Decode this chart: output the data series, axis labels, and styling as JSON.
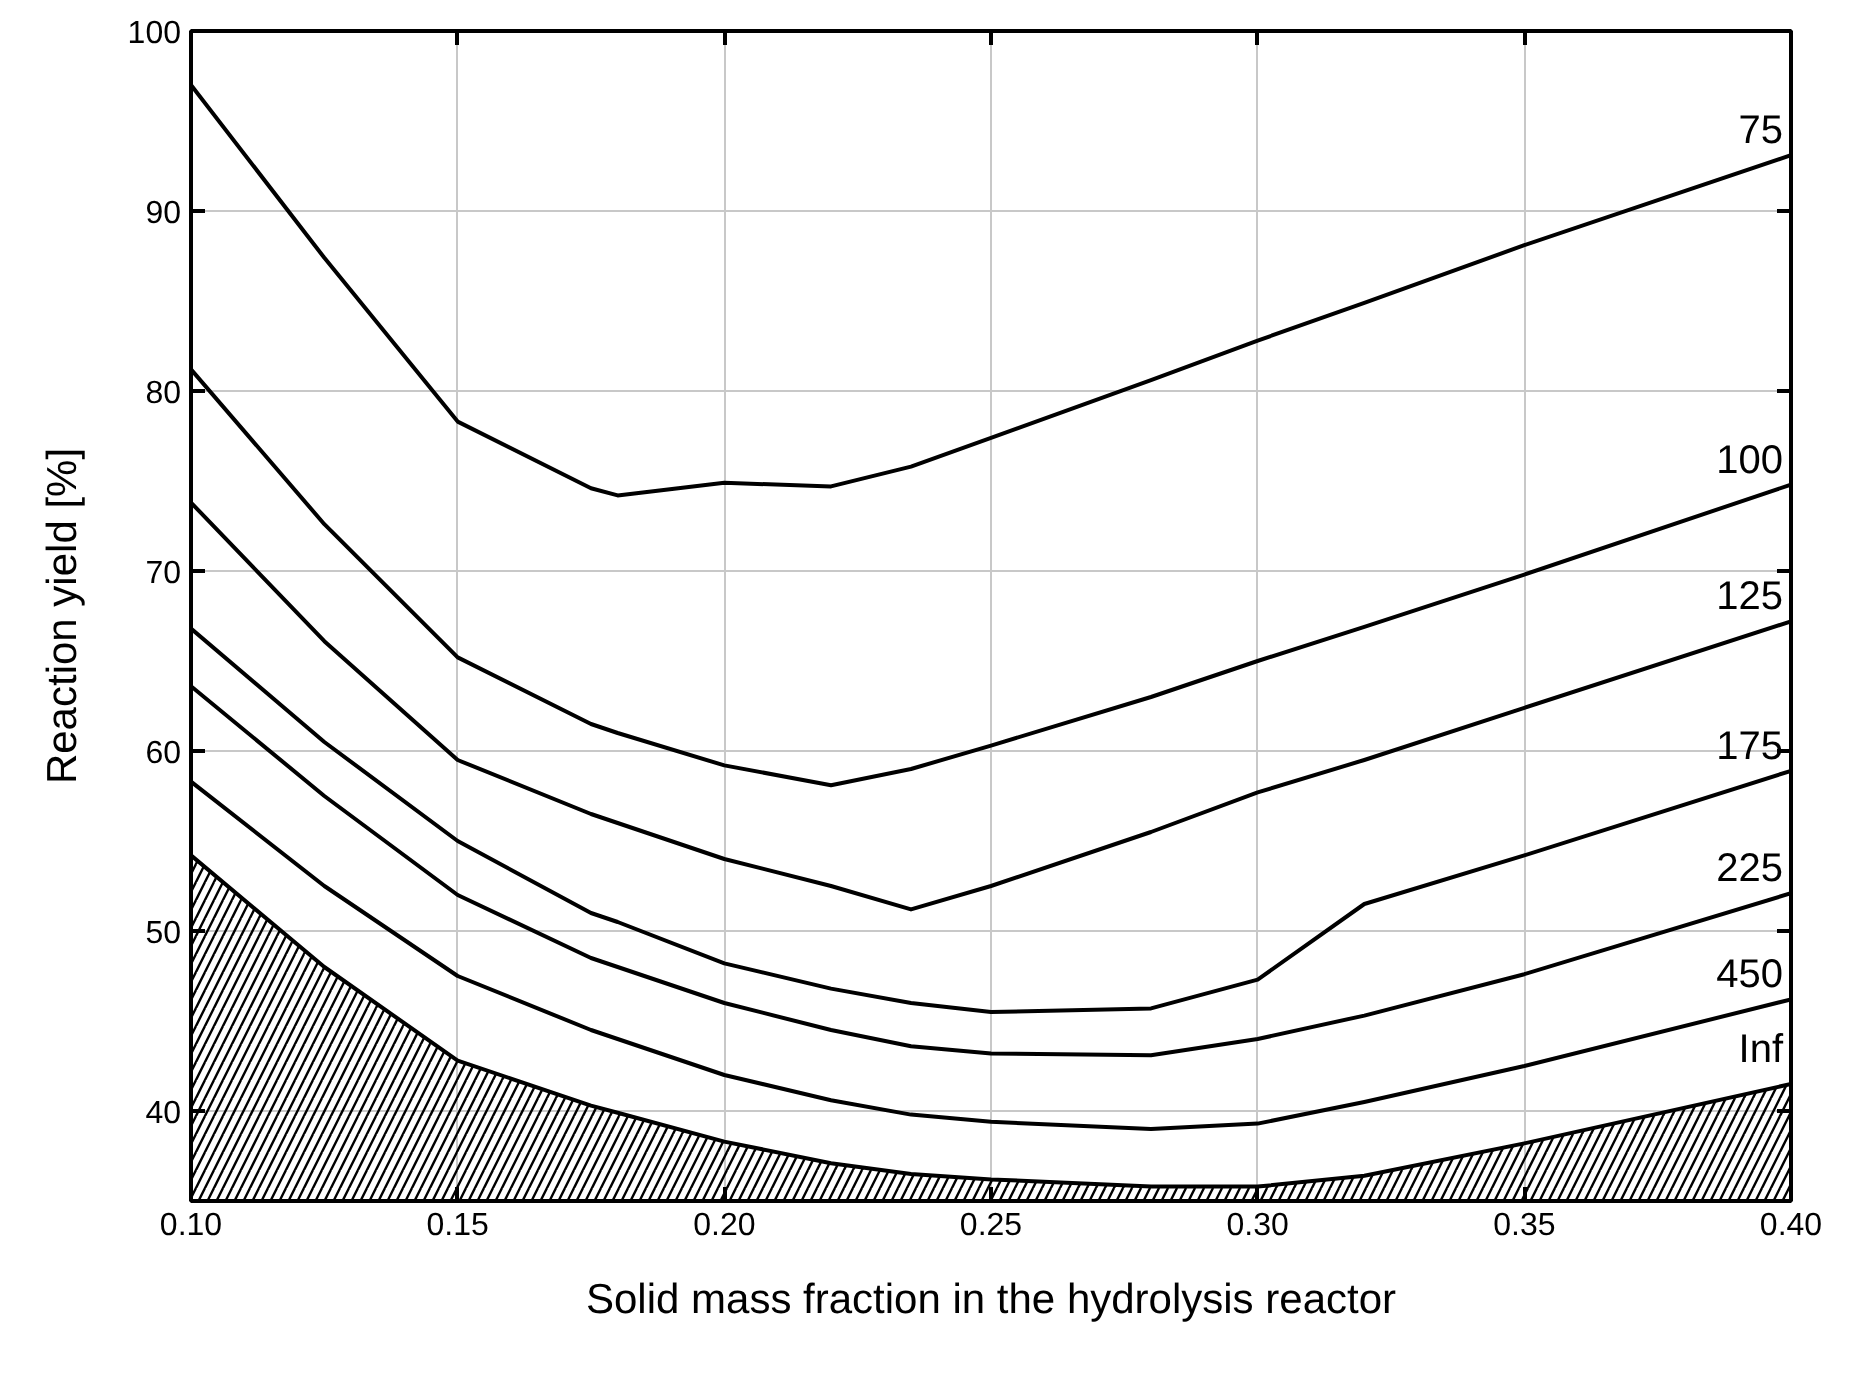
{
  "chart_data": {
    "type": "line",
    "xlabel": "Solid mass fraction in the hydrolysis reactor",
    "ylabel": "Reaction yield [%]",
    "x": [
      0.1,
      0.125,
      0.15,
      0.175,
      0.18,
      0.2,
      0.22,
      0.235,
      0.25,
      0.28,
      0.3,
      0.32,
      0.35,
      0.4
    ],
    "xlim": [
      0.1,
      0.4
    ],
    "ylim": [
      35,
      100
    ],
    "xticks": [
      {
        "value": 0.1,
        "label": "0.10"
      },
      {
        "value": 0.15,
        "label": "0.15"
      },
      {
        "value": 0.2,
        "label": "0.20"
      },
      {
        "value": 0.25,
        "label": "0.25"
      },
      {
        "value": 0.3,
        "label": "0.30"
      },
      {
        "value": 0.35,
        "label": "0.35"
      },
      {
        "value": 0.4,
        "label": "0.40"
      }
    ],
    "yticks": [
      40,
      50,
      60,
      70,
      80,
      90,
      100
    ],
    "grid": true,
    "legend": "right",
    "line_style": "solid",
    "marker": "none",
    "series": [
      {
        "name": "75",
        "color": "#000000",
        "values": [
          97.0,
          87.4,
          78.3,
          74.6,
          74.2,
          74.9,
          74.7,
          75.8,
          77.4,
          80.6,
          82.8,
          84.9,
          88.1,
          93.1
        ]
      },
      {
        "name": "100",
        "color": "#000000",
        "values": [
          81.2,
          72.6,
          65.2,
          61.5,
          61.0,
          59.2,
          58.1,
          59.0,
          60.3,
          63.0,
          65.0,
          66.9,
          69.8,
          74.8
        ]
      },
      {
        "name": "125",
        "color": "#000000",
        "values": [
          73.8,
          66.1,
          59.5,
          56.5,
          56.0,
          54.0,
          52.5,
          51.2,
          52.5,
          55.5,
          57.7,
          59.5,
          62.4,
          67.2
        ]
      },
      {
        "name": "175",
        "color": "#000000",
        "values": [
          66.8,
          60.5,
          55.0,
          51.0,
          50.5,
          48.2,
          46.8,
          46.0,
          45.5,
          45.7,
          47.3,
          51.5,
          54.2,
          58.9
        ]
      },
      {
        "name": "225",
        "color": "#000000",
        "values": [
          63.6,
          57.5,
          52.0,
          48.5,
          48.0,
          46.0,
          44.5,
          43.6,
          43.2,
          43.1,
          44.0,
          45.3,
          47.6,
          52.1
        ]
      },
      {
        "name": "450",
        "color": "#000000",
        "values": [
          58.3,
          52.5,
          47.5,
          44.5,
          44.0,
          42.0,
          40.6,
          39.8,
          39.4,
          39.0,
          39.3,
          40.5,
          42.5,
          46.2
        ]
      },
      {
        "name": "Inf",
        "type": "area",
        "color": "#000000",
        "values": [
          54.2,
          48.0,
          42.8,
          40.3,
          39.9,
          38.3,
          37.1,
          36.5,
          36.2,
          35.8,
          35.8,
          36.4,
          38.2,
          41.5
        ]
      }
    ]
  }
}
